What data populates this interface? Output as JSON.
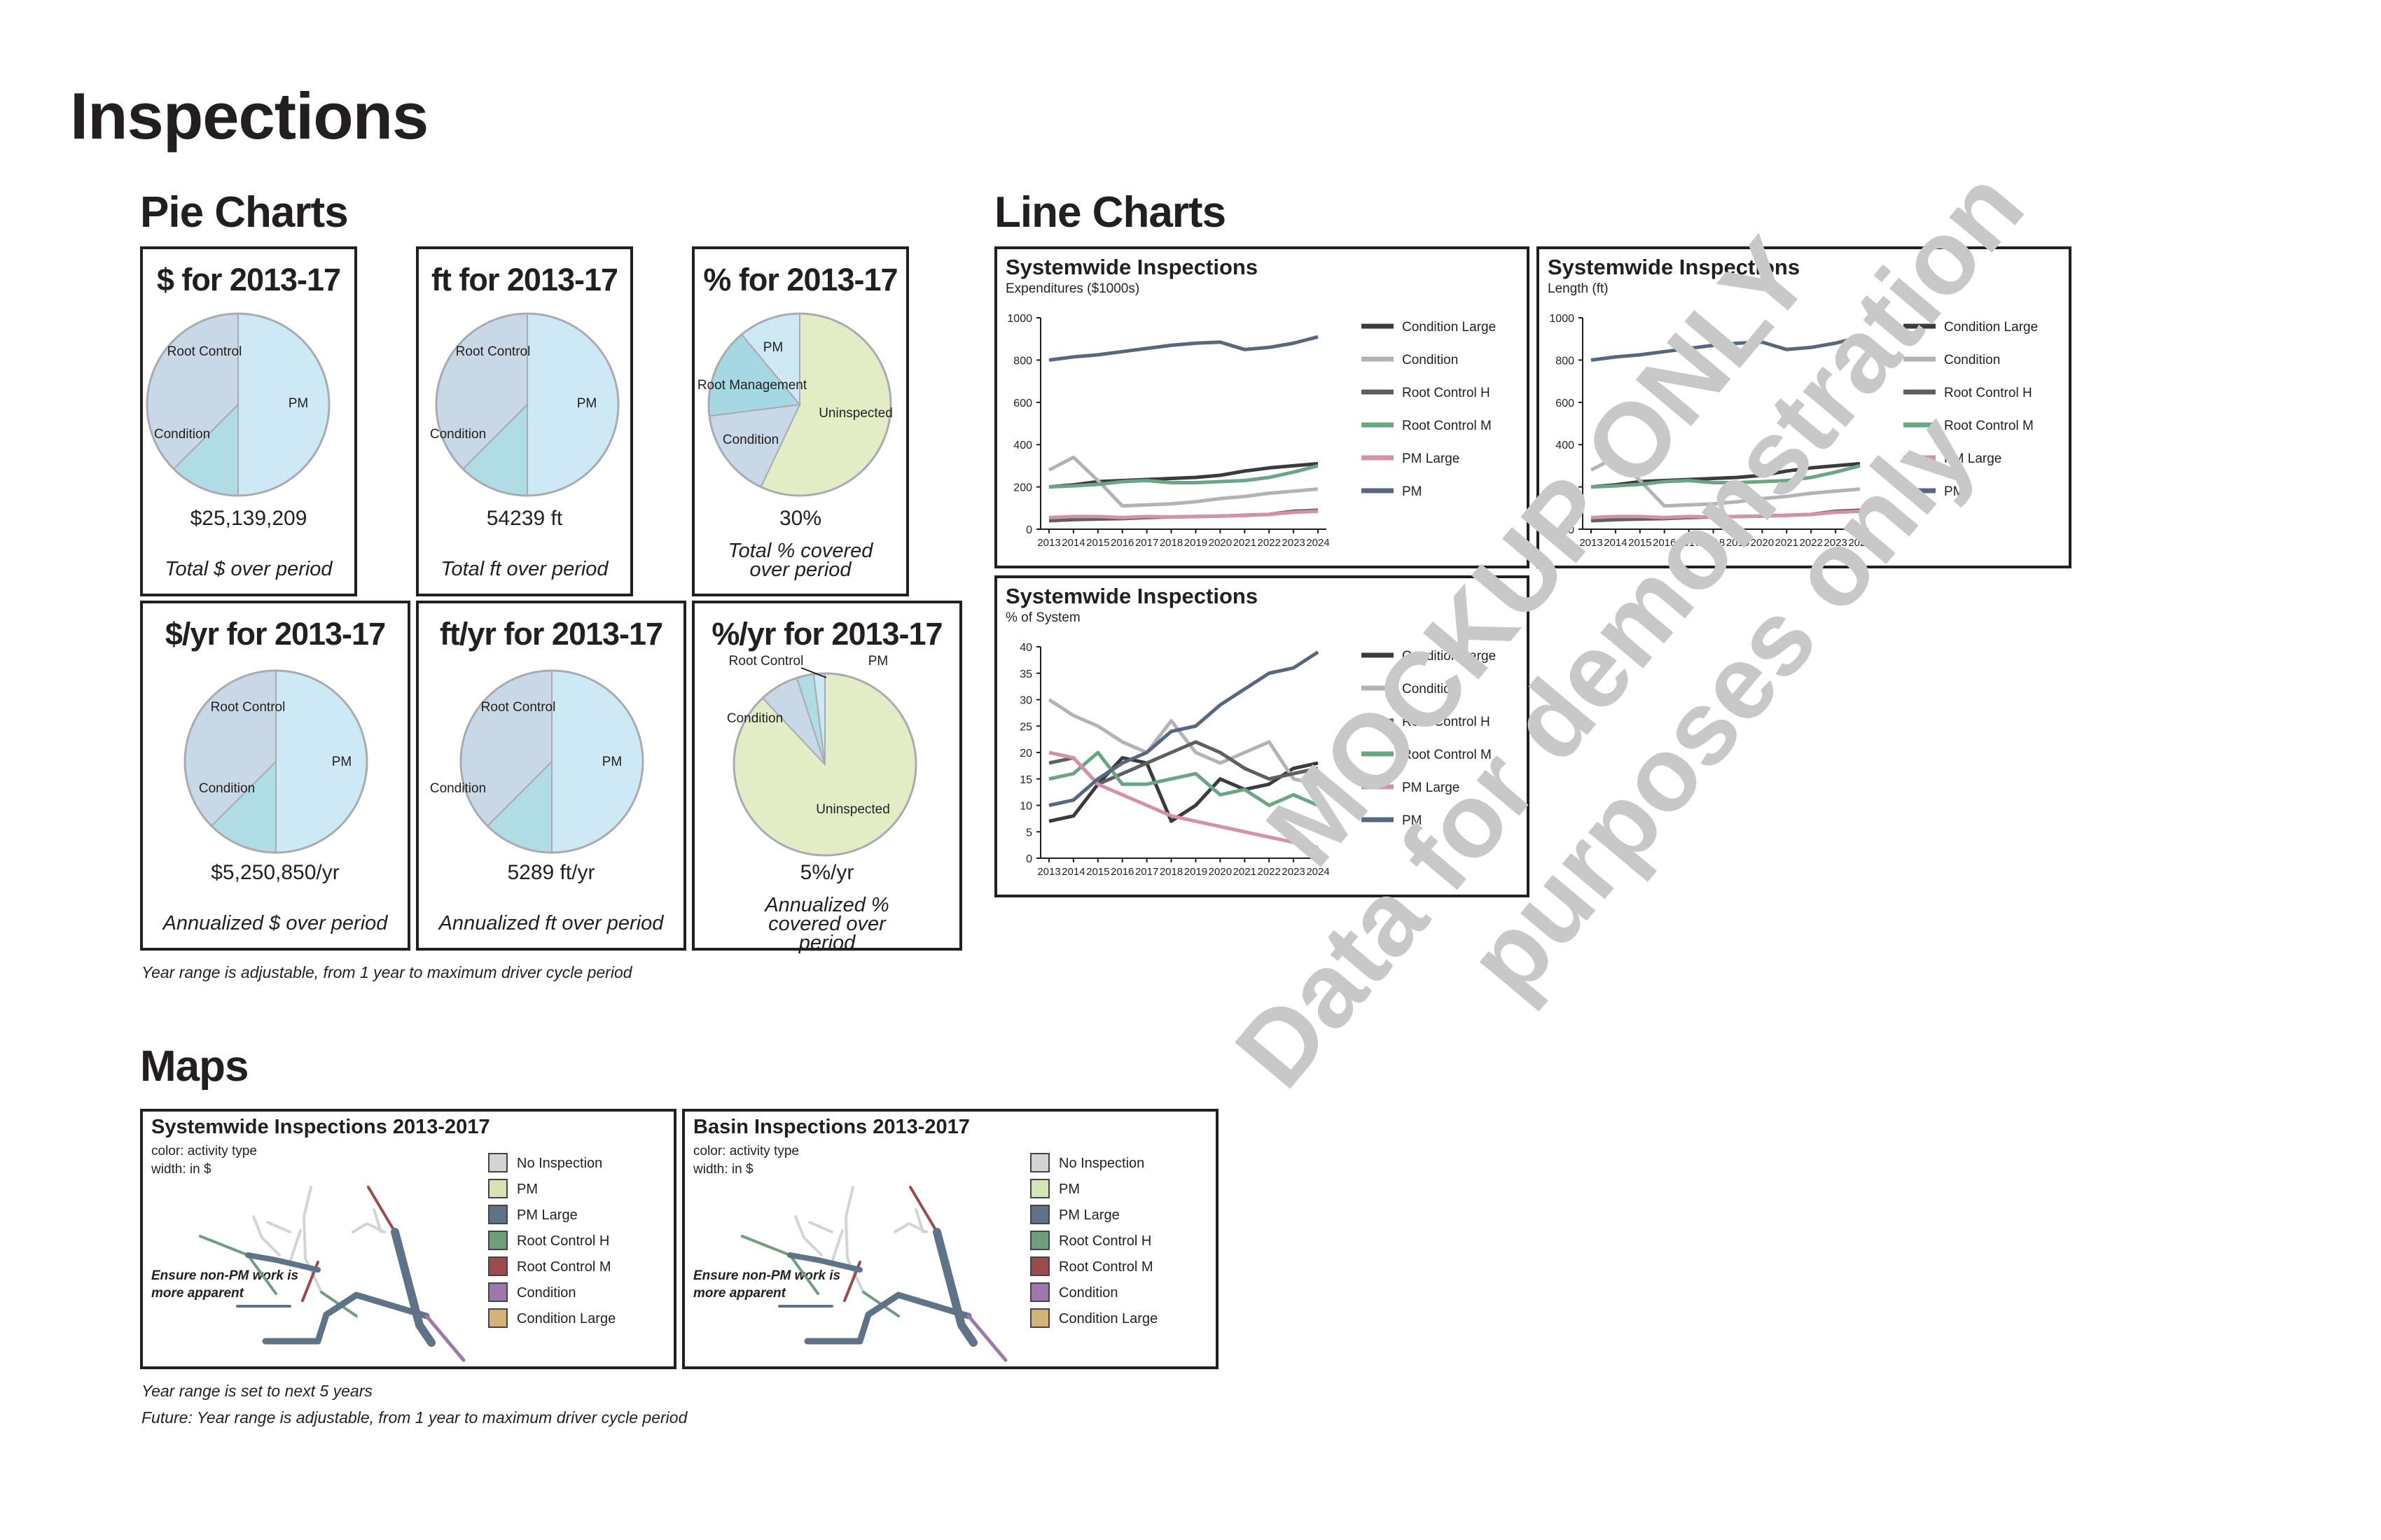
{
  "page_title": "Inspections",
  "sections": {
    "pie": "Pie Charts",
    "line": "Line Charts",
    "maps": "Maps"
  },
  "colors": {
    "pm": "#cde9f5",
    "root_control": "#b0dce6",
    "condition": "#c9d8e6",
    "root_management": "#a6d8e3",
    "uninspected": "#e2edc6",
    "edge": "#a9abb0",
    "condition_large": "#3a3b3f",
    "condition_line": "#b2b3b6",
    "root_control_h": "#5d5f63",
    "root_control_m": "#6aa584",
    "pm_large": "#d491a7",
    "pm_line": "#55687f",
    "map_no_inspection": "#d4d4d4",
    "map_pm": "#d6e3b7",
    "map_pm_large": "#5e7387",
    "map_root_h": "#6f9e7c",
    "map_root_m": "#9b4b4d",
    "map_condition": "#9e78ad",
    "map_condition_large": "#d4b27a"
  },
  "pie_cards": [
    {
      "title": "$ for 2013-17",
      "value": "$25,139,209",
      "caption": "Total $ over period",
      "labels": [
        "PM",
        "Root Control",
        "Condition"
      ]
    },
    {
      "title": "ft for 2013-17",
      "value": "54239 ft",
      "caption": "Total ft over period",
      "labels": [
        "PM",
        "Root Control",
        "Condition"
      ]
    },
    {
      "title": "% for 2013-17",
      "value": "30%",
      "caption": "Total % covered over period",
      "labels": [
        "Uninspected",
        "PM",
        "Root Management",
        "Condition"
      ]
    },
    {
      "title": "$/yr for 2013-17",
      "value": "$5,250,850/yr",
      "caption": "Annualized $ over period",
      "labels": [
        "PM",
        "Root Control",
        "Condition"
      ]
    },
    {
      "title": "ft/yr for 2013-17",
      "value": "5289 ft/yr",
      "caption": "Annualized ft over period",
      "labels": [
        "PM",
        "Root Control",
        "Condition"
      ]
    },
    {
      "title": "%/yr for 2013-17",
      "value": "5%/yr",
      "caption": "Annualized % covered over period",
      "labels": [
        "Uninspected",
        "PM",
        "Root Control",
        "Condition"
      ]
    }
  ],
  "pie_note": "Year range is adjustable, from 1 year to maximum driver cycle period",
  "chart_data": [
    {
      "type": "pie",
      "title": "$ for 2013-17",
      "slices": [
        {
          "label": "PM",
          "value": 50
        },
        {
          "label": "Root Control",
          "value": 12.5
        },
        {
          "label": "Condition",
          "value": 37.5
        }
      ]
    },
    {
      "type": "pie",
      "title": "ft for 2013-17",
      "slices": [
        {
          "label": "PM",
          "value": 50
        },
        {
          "label": "Root Control",
          "value": 12.5
        },
        {
          "label": "Condition",
          "value": 37.5
        }
      ]
    },
    {
      "type": "pie",
      "title": "% for 2013-17",
      "slices": [
        {
          "label": "Uninspected",
          "value": 57
        },
        {
          "label": "Condition",
          "value": 16
        },
        {
          "label": "Root Management",
          "value": 16
        },
        {
          "label": "PM",
          "value": 11
        }
      ]
    },
    {
      "type": "pie",
      "title": "$/yr for 2013-17",
      "slices": [
        {
          "label": "PM",
          "value": 50
        },
        {
          "label": "Root Control",
          "value": 12.5
        },
        {
          "label": "Condition",
          "value": 37.5
        }
      ]
    },
    {
      "type": "pie",
      "title": "ft/yr for 2013-17",
      "slices": [
        {
          "label": "PM",
          "value": 50
        },
        {
          "label": "Root Control",
          "value": 12.5
        },
        {
          "label": "Condition",
          "value": 37.5
        }
      ]
    },
    {
      "type": "pie",
      "title": "%/yr for 2013-17",
      "slices": [
        {
          "label": "Uninspected",
          "value": 88
        },
        {
          "label": "Condition",
          "value": 7
        },
        {
          "label": "Root Control",
          "value": 3
        },
        {
          "label": "PM",
          "value": 2
        }
      ]
    },
    {
      "type": "line",
      "title": "Systemwide Inspections",
      "subtitle": "Expenditures ($1000s)",
      "x": [
        "2013",
        "2014",
        "2015",
        "2016",
        "2017",
        "2018",
        "2019",
        "2020",
        "2021",
        "2022",
        "2023",
        "2024"
      ],
      "ylim": [
        0,
        1000
      ],
      "yticks": [
        0,
        200,
        400,
        600,
        800,
        1000
      ],
      "legend": "right",
      "series": [
        {
          "name": "Condition Large",
          "values": [
            200,
            210,
            225,
            230,
            235,
            240,
            245,
            255,
            275,
            290,
            300,
            310
          ]
        },
        {
          "name": "Condition",
          "values": [
            280,
            340,
            230,
            110,
            115,
            120,
            130,
            145,
            155,
            170,
            180,
            190
          ]
        },
        {
          "name": "Root Control H",
          "values": [
            40,
            45,
            48,
            50,
            55,
            58,
            60,
            62,
            66,
            70,
            85,
            90
          ]
        },
        {
          "name": "Root Control M",
          "values": [
            200,
            205,
            212,
            225,
            230,
            220,
            220,
            225,
            230,
            245,
            270,
            300
          ]
        },
        {
          "name": "PM Large",
          "values": [
            55,
            60,
            60,
            55,
            60,
            58,
            60,
            62,
            65,
            70,
            80,
            85
          ]
        },
        {
          "name": "PM",
          "values": [
            800,
            815,
            825,
            840,
            855,
            870,
            880,
            885,
            850,
            860,
            880,
            910
          ]
        }
      ]
    },
    {
      "type": "line",
      "title": "Systemwide Inspections",
      "subtitle": "Length (ft)",
      "x": [
        "2013",
        "2014",
        "2015",
        "2016",
        "2017",
        "2018",
        "2019",
        "2020",
        "2021",
        "2022",
        "2023",
        "2024"
      ],
      "ylim": [
        0,
        1000
      ],
      "yticks": [
        0,
        200,
        400,
        600,
        800,
        1000
      ],
      "legend": "right",
      "series": [
        {
          "name": "Condition Large",
          "values": [
            200,
            210,
            225,
            230,
            235,
            240,
            245,
            255,
            275,
            290,
            300,
            310
          ]
        },
        {
          "name": "Condition",
          "values": [
            280,
            340,
            230,
            110,
            115,
            120,
            130,
            145,
            155,
            170,
            180,
            190
          ]
        },
        {
          "name": "Root Control H",
          "values": [
            40,
            45,
            48,
            50,
            55,
            58,
            60,
            62,
            66,
            70,
            85,
            90
          ]
        },
        {
          "name": "Root Control M",
          "values": [
            200,
            205,
            212,
            225,
            230,
            220,
            220,
            225,
            230,
            245,
            270,
            300
          ]
        },
        {
          "name": "PM Large",
          "values": [
            55,
            60,
            60,
            55,
            60,
            58,
            60,
            62,
            65,
            70,
            80,
            85
          ]
        },
        {
          "name": "PM",
          "values": [
            800,
            815,
            825,
            840,
            855,
            870,
            880,
            885,
            850,
            860,
            880,
            910
          ]
        }
      ]
    },
    {
      "type": "line",
      "title": "Systemwide Inspections",
      "subtitle": "% of System",
      "x": [
        "2013",
        "2014",
        "2015",
        "2016",
        "2017",
        "2018",
        "2019",
        "2020",
        "2021",
        "2022",
        "2023",
        "2024"
      ],
      "ylim": [
        0,
        40
      ],
      "yticks": [
        0,
        5,
        10,
        15,
        20,
        25,
        30,
        35,
        40
      ],
      "legend": "right",
      "series": [
        {
          "name": "Condition Large",
          "values": [
            7,
            8,
            14,
            19,
            18,
            7,
            10,
            15,
            13,
            14,
            17,
            18
          ]
        },
        {
          "name": "Condition",
          "values": [
            30,
            27,
            25,
            22,
            20,
            26,
            20,
            18,
            20,
            22,
            15,
            14
          ]
        },
        {
          "name": "Root Control H",
          "values": [
            18,
            19,
            14,
            16,
            18,
            20,
            22,
            20,
            17,
            15,
            16,
            17
          ]
        },
        {
          "name": "Root Control M",
          "values": [
            15,
            16,
            20,
            14,
            14,
            15,
            16,
            12,
            13,
            10,
            12,
            10
          ]
        },
        {
          "name": "PM Large",
          "values": [
            20,
            19,
            14,
            12,
            10,
            8,
            7,
            6,
            5,
            4,
            3,
            2
          ]
        },
        {
          "name": "PM",
          "values": [
            10,
            11,
            15,
            18,
            20,
            24,
            25,
            29,
            32,
            35,
            36,
            39
          ]
        }
      ]
    }
  ],
  "maps": [
    {
      "title": "Systemwide Inspections 2013-2017",
      "color_note": "color: activity type",
      "width_note": "width: in $",
      "note_line1": "Ensure non-PM work is",
      "note_line2": "more apparent",
      "legend": [
        "No Inspection",
        "PM",
        "PM Large",
        "Root Control H",
        "Root Control M",
        "Condition",
        "Condition Large"
      ]
    },
    {
      "title": "Basin Inspections 2013-2017",
      "color_note": "color: activity type",
      "width_note": "width: in $",
      "note_line1": "Ensure non-PM work is",
      "note_line2": "more apparent",
      "legend": [
        "No Inspection",
        "PM",
        "PM Large",
        "Root Control H",
        "Root Control M",
        "Condition",
        "Condition Large"
      ]
    }
  ],
  "map_notes": {
    "line1": "Year range is set to next 5 years",
    "line2": "Future: Year range is adjustable, from 1 year to maximum driver cycle period"
  },
  "watermark": {
    "line1": "MOCKUP ONLY",
    "line2": "Data for demonstration purposes only"
  }
}
